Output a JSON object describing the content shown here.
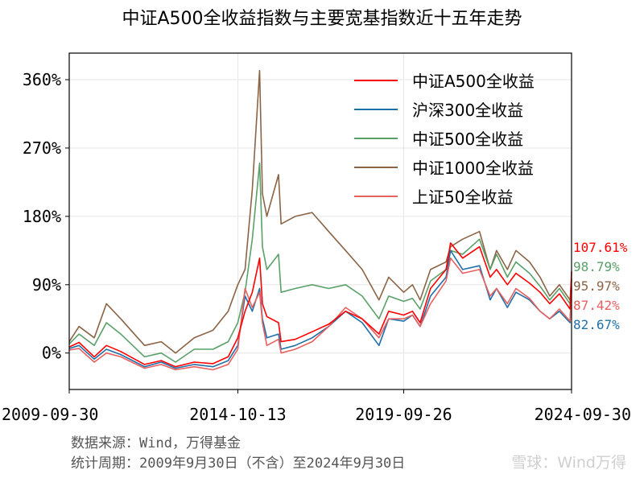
{
  "chart_data": {
    "type": "line",
    "title": "中证A500全收益指数与主要宽基指数近十五年走势",
    "x_ticks": [
      "2009-09-30",
      "2014-10-13",
      "2019-09-26",
      "2024-09-30"
    ],
    "x_range": [
      "2009-09-30",
      "2024-09-30"
    ],
    "y_ticks": [
      "0%",
      "90%",
      "180%",
      "270%",
      "360%"
    ],
    "y_tick_values": [
      0,
      90,
      180,
      270,
      360
    ],
    "ylim": [
      -48,
      395
    ],
    "y_unit": "%",
    "grid": true,
    "legend_position": "top-right",
    "series": [
      {
        "name": "中证A500全收益",
        "color": "#ff0000",
        "end_label": "107.61%",
        "x": [
          "2009-09-30",
          "2010-01-15",
          "2010-06-30",
          "2010-11-10",
          "2011-04-15",
          "2011-12-31",
          "2012-06-30",
          "2012-12-03",
          "2013-06-25",
          "2014-01-15",
          "2014-06-30",
          "2014-10-13",
          "2014-12-31",
          "2015-03-20",
          "2015-06-08",
          "2015-07-08",
          "2015-08-26",
          "2015-12-31",
          "2016-01-28",
          "2016-06-30",
          "2016-12-31",
          "2017-06-30",
          "2017-12-31",
          "2018-06-30",
          "2018-12-31",
          "2019-04-15",
          "2019-09-26",
          "2019-12-31",
          "2020-03-23",
          "2020-07-15",
          "2020-12-31",
          "2021-02-18",
          "2021-06-30",
          "2021-12-31",
          "2022-04-26",
          "2022-07-05",
          "2022-10-31",
          "2023-02-01",
          "2023-06-30",
          "2023-10-23",
          "2024-02-05",
          "2024-05-20",
          "2024-09-13",
          "2024-09-30"
        ],
        "y": [
          8,
          14,
          -5,
          10,
          2,
          -15,
          -10,
          -18,
          -12,
          -14,
          -5,
          20,
          55,
          80,
          125,
          65,
          48,
          40,
          15,
          18,
          28,
          38,
          55,
          45,
          25,
          55,
          50,
          55,
          40,
          85,
          110,
          145,
          125,
          140,
          100,
          110,
          90,
          105,
          92,
          80,
          65,
          78,
          58,
          107.61
        ]
      },
      {
        "name": "沪深300全收益",
        "color": "#1f6fa8",
        "end_label": "82.67%",
        "x": [
          "2009-09-30",
          "2010-01-15",
          "2010-06-30",
          "2010-11-10",
          "2011-04-15",
          "2011-12-31",
          "2012-06-30",
          "2012-12-03",
          "2013-06-25",
          "2014-01-15",
          "2014-06-30",
          "2014-10-13",
          "2014-12-31",
          "2015-03-20",
          "2015-06-08",
          "2015-07-08",
          "2015-08-26",
          "2015-12-31",
          "2016-01-28",
          "2016-06-30",
          "2016-12-31",
          "2017-06-30",
          "2017-12-31",
          "2018-06-30",
          "2018-12-31",
          "2019-04-15",
          "2019-09-26",
          "2019-12-31",
          "2020-03-23",
          "2020-07-15",
          "2020-12-31",
          "2021-02-18",
          "2021-06-30",
          "2021-12-31",
          "2022-04-26",
          "2022-07-05",
          "2022-10-31",
          "2023-02-01",
          "2023-06-30",
          "2023-10-23",
          "2024-02-05",
          "2024-05-20",
          "2024-09-13",
          "2024-09-30"
        ],
        "y": [
          6,
          10,
          -8,
          5,
          -2,
          -18,
          -12,
          -20,
          -15,
          -18,
          -10,
          10,
          75,
          55,
          85,
          45,
          20,
          25,
          5,
          10,
          20,
          35,
          55,
          40,
          10,
          45,
          42,
          50,
          35,
          75,
          100,
          135,
          110,
          115,
          70,
          85,
          60,
          80,
          70,
          55,
          45,
          55,
          40,
          82.67
        ]
      },
      {
        "name": "中证500全收益",
        "color": "#5aa069",
        "end_label": "98.79%",
        "x": [
          "2009-09-30",
          "2010-01-15",
          "2010-06-30",
          "2010-11-10",
          "2011-04-15",
          "2011-12-31",
          "2012-06-30",
          "2012-12-03",
          "2013-06-25",
          "2014-01-15",
          "2014-06-30",
          "2014-10-13",
          "2014-12-31",
          "2015-03-20",
          "2015-06-08",
          "2015-07-08",
          "2015-08-26",
          "2015-12-31",
          "2016-01-28",
          "2016-06-30",
          "2016-12-31",
          "2017-06-30",
          "2017-12-31",
          "2018-06-30",
          "2018-12-31",
          "2019-04-15",
          "2019-09-26",
          "2019-12-31",
          "2020-03-23",
          "2020-07-15",
          "2020-12-31",
          "2021-02-18",
          "2021-06-30",
          "2021-12-31",
          "2022-04-26",
          "2022-07-05",
          "2022-10-31",
          "2023-02-01",
          "2023-06-30",
          "2023-10-23",
          "2024-02-05",
          "2024-05-20",
          "2024-09-13",
          "2024-09-30"
        ],
        "y": [
          12,
          25,
          10,
          40,
          25,
          -5,
          0,
          -12,
          5,
          5,
          15,
          40,
          80,
          150,
          250,
          140,
          110,
          130,
          80,
          85,
          90,
          85,
          90,
          75,
          45,
          75,
          68,
          72,
          58,
          95,
          110,
          135,
          130,
          150,
          110,
          130,
          100,
          120,
          105,
          88,
          70,
          85,
          65,
          98.79
        ]
      },
      {
        "name": "中证1000全收益",
        "color": "#8b6446",
        "end_label": "95.97%",
        "x": [
          "2009-09-30",
          "2010-01-15",
          "2010-06-30",
          "2010-11-10",
          "2011-04-15",
          "2011-12-31",
          "2012-06-30",
          "2012-12-03",
          "2013-06-25",
          "2014-01-15",
          "2014-06-30",
          "2014-10-13",
          "2014-12-31",
          "2015-03-20",
          "2015-06-08",
          "2015-07-08",
          "2015-08-26",
          "2015-12-31",
          "2016-01-28",
          "2016-06-30",
          "2016-12-31",
          "2017-06-30",
          "2017-12-31",
          "2018-06-30",
          "2018-12-31",
          "2019-04-15",
          "2019-09-26",
          "2019-12-31",
          "2020-03-23",
          "2020-07-15",
          "2020-12-31",
          "2021-02-18",
          "2021-06-30",
          "2021-12-31",
          "2022-04-26",
          "2022-07-05",
          "2022-10-31",
          "2023-02-01",
          "2023-06-30",
          "2023-10-23",
          "2024-02-05",
          "2024-05-20",
          "2024-09-13",
          "2024-09-30"
        ],
        "y": [
          15,
          35,
          20,
          65,
          45,
          10,
          15,
          0,
          20,
          30,
          55,
          90,
          110,
          215,
          372,
          210,
          180,
          235,
          170,
          180,
          185,
          160,
          135,
          110,
          70,
          100,
          80,
          90,
          70,
          110,
          120,
          140,
          150,
          160,
          110,
          135,
          110,
          135,
          120,
          100,
          75,
          90,
          70,
          95.97
        ]
      },
      {
        "name": "上证50全收益",
        "color": "#e86060",
        "end_label": "87.42%",
        "x": [
          "2009-09-30",
          "2010-01-15",
          "2010-06-30",
          "2010-11-10",
          "2011-04-15",
          "2011-12-31",
          "2012-06-30",
          "2012-12-03",
          "2013-06-25",
          "2014-01-15",
          "2014-06-30",
          "2014-10-13",
          "2014-12-31",
          "2015-03-20",
          "2015-06-08",
          "2015-07-08",
          "2015-08-26",
          "2015-12-31",
          "2016-01-28",
          "2016-06-30",
          "2016-12-31",
          "2017-06-30",
          "2017-12-31",
          "2018-06-30",
          "2018-12-31",
          "2019-04-15",
          "2019-09-26",
          "2019-12-31",
          "2020-03-23",
          "2020-07-15",
          "2020-12-31",
          "2021-02-18",
          "2021-06-30",
          "2021-12-31",
          "2022-04-26",
          "2022-07-05",
          "2022-10-31",
          "2023-02-01",
          "2023-06-30",
          "2023-10-23",
          "2024-02-05",
          "2024-05-20",
          "2024-09-13",
          "2024-09-30"
        ],
        "y": [
          4,
          6,
          -12,
          0,
          -5,
          -20,
          -15,
          -22,
          -18,
          -22,
          -15,
          5,
          85,
          60,
          80,
          40,
          10,
          18,
          0,
          5,
          15,
          35,
          60,
          45,
          20,
          45,
          45,
          50,
          35,
          65,
          95,
          125,
          105,
          110,
          75,
          85,
          65,
          85,
          72,
          55,
          45,
          58,
          42,
          87.42
        ]
      }
    ]
  },
  "footer": {
    "source": "数据来源：Wind，万得基金",
    "period": "统计周期：2009年9月30日（不含）至2024年9月30日"
  },
  "watermark": "雪球：Wind万得"
}
